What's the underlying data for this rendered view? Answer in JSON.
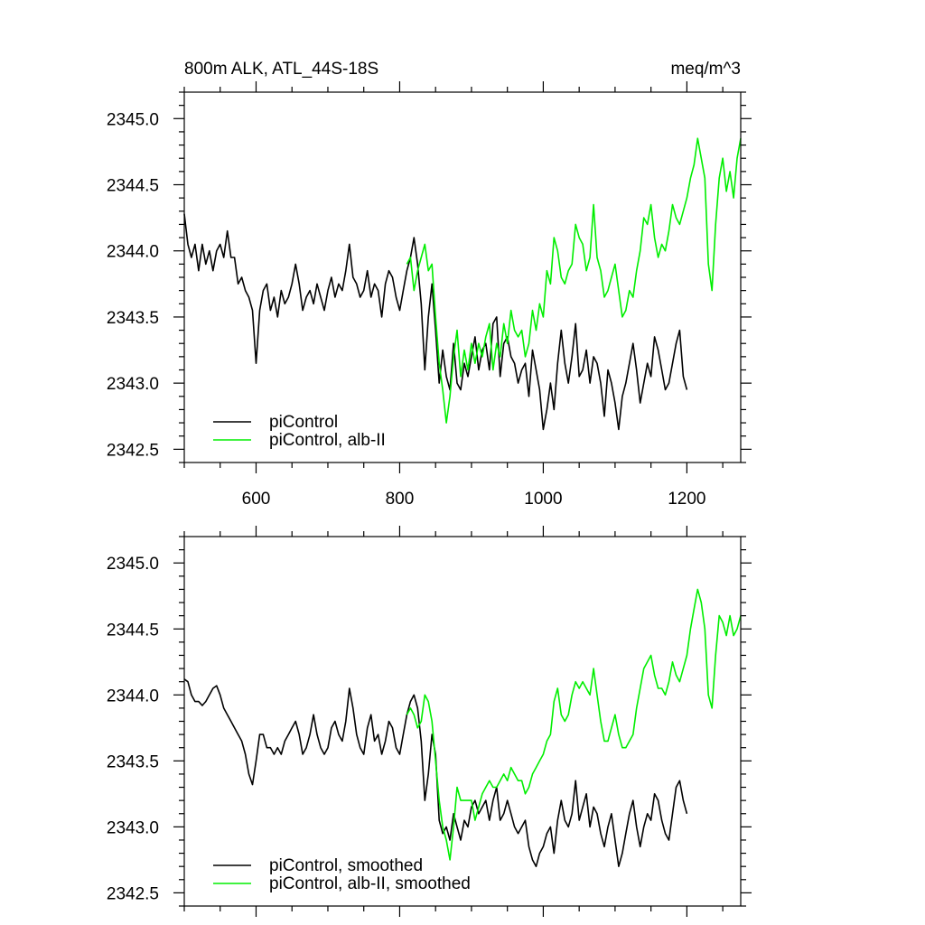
{
  "figure": {
    "title_left": "800m ALK, ATL_44S-18S",
    "title_right": "meq/m^3"
  },
  "colors": {
    "control": "#000000",
    "albII": "#00ee00"
  },
  "chart_data": [
    {
      "type": "line",
      "title": "800m ALK, ATL_44S-18S",
      "units": "meq/m^3",
      "xlim": [
        500,
        1275
      ],
      "ylim": [
        2342.4,
        2345.2
      ],
      "x_ticks": [
        600,
        800,
        1000,
        1200
      ],
      "y_ticks": [
        2342.5,
        2343.0,
        2343.5,
        2344.0,
        2344.5,
        2345.0
      ],
      "x_tick_labels": [
        "600",
        "800",
        "1000",
        "1200"
      ],
      "y_tick_labels": [
        "2342.5",
        "2343.0",
        "2343.5",
        "2344.0",
        "2344.5",
        "2345.0"
      ],
      "grid": false,
      "legend_position": "bottom-left",
      "series": [
        {
          "name": "piControl",
          "color": "#000000",
          "x": [
            500,
            505,
            510,
            515,
            520,
            525,
            530,
            535,
            540,
            545,
            550,
            555,
            560,
            565,
            570,
            575,
            580,
            585,
            590,
            595,
            600,
            605,
            610,
            615,
            620,
            625,
            630,
            635,
            640,
            645,
            650,
            655,
            660,
            665,
            670,
            675,
            680,
            685,
            690,
            695,
            700,
            705,
            710,
            715,
            720,
            725,
            730,
            735,
            740,
            745,
            750,
            755,
            760,
            765,
            770,
            775,
            780,
            785,
            790,
            795,
            800,
            805,
            810,
            815,
            820,
            825,
            830,
            835,
            840,
            845,
            850,
            855,
            860,
            865,
            870,
            875,
            880,
            885,
            890,
            895,
            900,
            905,
            910,
            915,
            920,
            925,
            930,
            935,
            940,
            945,
            950,
            955,
            960,
            965,
            970,
            975,
            980,
            985,
            990,
            995,
            1000,
            1005,
            1010,
            1015,
            1020,
            1025,
            1030,
            1035,
            1040,
            1045,
            1050,
            1055,
            1060,
            1065,
            1070,
            1075,
            1080,
            1085,
            1090,
            1095,
            1100,
            1105,
            1110,
            1115,
            1120,
            1125,
            1130,
            1135,
            1140,
            1145,
            1150,
            1155,
            1160,
            1165,
            1170,
            1175,
            1180,
            1185,
            1190,
            1195,
            1200
          ],
          "values": [
            2344.28,
            2344.05,
            2343.95,
            2344.05,
            2343.85,
            2344.05,
            2343.9,
            2344.0,
            2343.85,
            2344.0,
            2344.05,
            2343.95,
            2344.15,
            2343.95,
            2343.95,
            2343.75,
            2343.8,
            2343.7,
            2343.65,
            2343.55,
            2343.15,
            2343.55,
            2343.7,
            2343.75,
            2343.55,
            2343.65,
            2343.5,
            2343.7,
            2343.6,
            2343.65,
            2343.75,
            2343.9,
            2343.75,
            2343.55,
            2343.65,
            2343.7,
            2343.6,
            2343.75,
            2343.65,
            2343.55,
            2343.7,
            2343.8,
            2343.65,
            2343.75,
            2343.7,
            2343.85,
            2344.05,
            2343.8,
            2343.75,
            2343.65,
            2343.7,
            2343.85,
            2343.65,
            2343.75,
            2343.7,
            2343.5,
            2343.75,
            2343.85,
            2343.8,
            2343.65,
            2343.55,
            2343.7,
            2343.85,
            2343.95,
            2344.1,
            2343.9,
            2343.6,
            2343.1,
            2343.5,
            2343.75,
            2343.4,
            2343.0,
            2343.25,
            2343.05,
            2342.95,
            2343.3,
            2343.0,
            2342.95,
            2343.15,
            2343.05,
            2343.2,
            2343.35,
            2343.1,
            2343.25,
            2343.3,
            2343.1,
            2343.45,
            2343.5,
            2343.05,
            2343.3,
            2343.35,
            2343.2,
            2343.15,
            2343.0,
            2343.1,
            2343.15,
            2342.9,
            2343.25,
            2343.1,
            2342.95,
            2342.65,
            2342.8,
            2343.0,
            2342.8,
            2343.15,
            2343.4,
            2343.15,
            2343.0,
            2343.2,
            2343.45,
            2343.05,
            2343.1,
            2343.25,
            2343.0,
            2343.2,
            2343.15,
            2343.0,
            2342.75,
            2343.1,
            2343.0,
            2342.85,
            2342.65,
            2342.9,
            2343.0,
            2343.15,
            2343.3,
            2343.1,
            2342.85,
            2343.0,
            2343.15,
            2343.05,
            2343.35,
            2343.25,
            2343.1,
            2342.95,
            2343.0,
            2343.15,
            2343.3,
            2343.4,
            2343.05,
            2342.95
          ]
        },
        {
          "name": "piControl, alb-II",
          "color": "#00ee00",
          "x": [
            810,
            815,
            820,
            825,
            830,
            835,
            840,
            845,
            850,
            855,
            860,
            865,
            870,
            875,
            880,
            885,
            890,
            895,
            900,
            905,
            910,
            915,
            920,
            925,
            930,
            935,
            940,
            945,
            950,
            955,
            960,
            965,
            970,
            975,
            980,
            985,
            990,
            995,
            1000,
            1005,
            1010,
            1015,
            1020,
            1025,
            1030,
            1035,
            1040,
            1045,
            1050,
            1055,
            1060,
            1065,
            1070,
            1075,
            1080,
            1085,
            1090,
            1095,
            1100,
            1105,
            1110,
            1115,
            1120,
            1125,
            1130,
            1135,
            1140,
            1145,
            1150,
            1155,
            1160,
            1165,
            1170,
            1175,
            1180,
            1185,
            1190,
            1195,
            1200,
            1205,
            1210,
            1215,
            1220,
            1225,
            1230,
            1235,
            1240,
            1245,
            1250,
            1255,
            1260,
            1265,
            1270,
            1275
          ],
          "values": [
            2343.9,
            2343.95,
            2343.7,
            2343.85,
            2343.95,
            2344.05,
            2343.85,
            2343.9,
            2343.5,
            2343.15,
            2342.95,
            2342.7,
            2342.9,
            2343.2,
            2343.4,
            2343.05,
            2343.25,
            2343.1,
            2343.3,
            2343.15,
            2343.3,
            2343.2,
            2343.35,
            2343.45,
            2343.1,
            2343.3,
            2343.2,
            2343.45,
            2343.3,
            2343.55,
            2343.4,
            2343.35,
            2343.4,
            2343.2,
            2343.3,
            2343.55,
            2343.4,
            2343.6,
            2343.5,
            2343.85,
            2343.75,
            2344.1,
            2344.0,
            2343.8,
            2343.75,
            2343.85,
            2343.9,
            2344.2,
            2344.1,
            2344.05,
            2343.85,
            2343.95,
            2344.35,
            2343.95,
            2343.85,
            2343.65,
            2343.7,
            2343.8,
            2343.9,
            2343.7,
            2343.5,
            2343.55,
            2343.7,
            2343.65,
            2343.85,
            2344.0,
            2344.25,
            2344.2,
            2344.35,
            2344.1,
            2343.95,
            2344.05,
            2344.0,
            2344.15,
            2344.35,
            2344.25,
            2344.2,
            2344.3,
            2344.4,
            2344.55,
            2344.65,
            2344.85,
            2344.7,
            2344.55,
            2343.9,
            2343.7,
            2344.2,
            2344.55,
            2344.7,
            2344.45,
            2344.6,
            2344.4,
            2344.7,
            2344.85
          ]
        }
      ]
    },
    {
      "type": "line",
      "xlim": [
        500,
        1275
      ],
      "ylim": [
        2342.4,
        2345.2
      ],
      "x_ticks": [
        600,
        800,
        1000,
        1200
      ],
      "y_ticks": [
        2342.5,
        2343.0,
        2343.5,
        2344.0,
        2344.5,
        2345.0
      ],
      "x_tick_labels": [],
      "y_tick_labels": [
        "2342.5",
        "2343.0",
        "2343.5",
        "2344.0",
        "2344.5",
        "2345.0"
      ],
      "grid": false,
      "legend_position": "bottom-left",
      "series": [
        {
          "name": "piControl, smoothed",
          "color": "#000000",
          "x": [
            500,
            505,
            510,
            515,
            520,
            525,
            530,
            535,
            540,
            545,
            550,
            555,
            560,
            565,
            570,
            575,
            580,
            585,
            590,
            595,
            600,
            605,
            610,
            615,
            620,
            625,
            630,
            635,
            640,
            645,
            650,
            655,
            660,
            665,
            670,
            675,
            680,
            685,
            690,
            695,
            700,
            705,
            710,
            715,
            720,
            725,
            730,
            735,
            740,
            745,
            750,
            755,
            760,
            765,
            770,
            775,
            780,
            785,
            790,
            795,
            800,
            805,
            810,
            815,
            820,
            825,
            830,
            835,
            840,
            845,
            850,
            855,
            860,
            865,
            870,
            875,
            880,
            885,
            890,
            895,
            900,
            905,
            910,
            915,
            920,
            925,
            930,
            935,
            940,
            945,
            950,
            955,
            960,
            965,
            970,
            975,
            980,
            985,
            990,
            995,
            1000,
            1005,
            1010,
            1015,
            1020,
            1025,
            1030,
            1035,
            1040,
            1045,
            1050,
            1055,
            1060,
            1065,
            1070,
            1075,
            1080,
            1085,
            1090,
            1095,
            1100,
            1105,
            1110,
            1115,
            1120,
            1125,
            1130,
            1135,
            1140,
            1145,
            1150,
            1155,
            1160,
            1165,
            1170,
            1175,
            1180,
            1185,
            1190,
            1195,
            1200
          ],
          "values": [
            2344.12,
            2344.1,
            2344.0,
            2343.95,
            2343.95,
            2343.92,
            2343.95,
            2344.0,
            2344.05,
            2344.07,
            2344.0,
            2343.9,
            2343.85,
            2343.8,
            2343.75,
            2343.7,
            2343.65,
            2343.55,
            2343.4,
            2343.32,
            2343.5,
            2343.7,
            2343.7,
            2343.6,
            2343.6,
            2343.55,
            2343.6,
            2343.55,
            2343.65,
            2343.7,
            2343.75,
            2343.8,
            2343.7,
            2343.55,
            2343.6,
            2343.7,
            2343.85,
            2343.7,
            2343.6,
            2343.55,
            2343.6,
            2343.75,
            2343.8,
            2343.7,
            2343.65,
            2343.8,
            2344.05,
            2343.9,
            2343.7,
            2343.6,
            2343.55,
            2343.75,
            2343.85,
            2343.65,
            2343.7,
            2343.55,
            2343.65,
            2343.8,
            2343.75,
            2343.6,
            2343.55,
            2343.7,
            2343.85,
            2343.95,
            2344.0,
            2343.9,
            2343.65,
            2343.2,
            2343.4,
            2343.7,
            2343.55,
            2343.05,
            2342.95,
            2343.0,
            2342.9,
            2343.1,
            2343.0,
            2342.9,
            2343.05,
            2343.0,
            2343.15,
            2343.2,
            2343.1,
            2343.15,
            2343.2,
            2343.05,
            2343.2,
            2343.3,
            2343.05,
            2343.1,
            2343.2,
            2343.1,
            2343.0,
            2342.95,
            2343.0,
            2343.05,
            2342.85,
            2342.75,
            2342.7,
            2342.8,
            2342.85,
            2342.95,
            2343.0,
            2342.8,
            2343.05,
            2343.2,
            2343.05,
            2343.0,
            2343.1,
            2343.35,
            2343.05,
            2343.15,
            2343.25,
            2343.0,
            2343.15,
            2343.1,
            2342.95,
            2342.85,
            2343.0,
            2343.1,
            2342.9,
            2342.7,
            2342.8,
            2342.95,
            2343.1,
            2343.2,
            2343.0,
            2342.85,
            2343.0,
            2343.1,
            2343.05,
            2343.25,
            2343.2,
            2343.05,
            2342.95,
            2342.9,
            2343.1,
            2343.3,
            2343.35,
            2343.2,
            2343.1
          ]
        },
        {
          "name": "piControl, alb-II, smoothed",
          "color": "#00ee00",
          "x": [
            810,
            815,
            820,
            825,
            830,
            835,
            840,
            845,
            850,
            855,
            860,
            865,
            870,
            875,
            880,
            885,
            890,
            895,
            900,
            905,
            910,
            915,
            920,
            925,
            930,
            935,
            940,
            945,
            950,
            955,
            960,
            965,
            970,
            975,
            980,
            985,
            990,
            995,
            1000,
            1005,
            1010,
            1015,
            1020,
            1025,
            1030,
            1035,
            1040,
            1045,
            1050,
            1055,
            1060,
            1065,
            1070,
            1075,
            1080,
            1085,
            1090,
            1095,
            1100,
            1105,
            1110,
            1115,
            1120,
            1125,
            1130,
            1135,
            1140,
            1145,
            1150,
            1155,
            1160,
            1165,
            1170,
            1175,
            1180,
            1185,
            1190,
            1195,
            1200,
            1205,
            1210,
            1215,
            1220,
            1225,
            1230,
            1235,
            1240,
            1245,
            1250,
            1255,
            1260,
            1265,
            1270,
            1275
          ],
          "values": [
            2343.85,
            2343.9,
            2343.85,
            2343.75,
            2343.8,
            2344.0,
            2343.95,
            2343.8,
            2343.5,
            2343.2,
            2343.0,
            2342.9,
            2342.75,
            2343.0,
            2343.3,
            2343.2,
            2343.2,
            2343.2,
            2343.2,
            2343.05,
            2343.15,
            2343.25,
            2343.3,
            2343.35,
            2343.3,
            2343.3,
            2343.35,
            2343.4,
            2343.35,
            2343.45,
            2343.4,
            2343.35,
            2343.35,
            2343.25,
            2343.3,
            2343.4,
            2343.45,
            2343.5,
            2343.55,
            2343.65,
            2343.7,
            2343.95,
            2344.05,
            2343.85,
            2343.8,
            2343.85,
            2344.0,
            2344.1,
            2344.05,
            2344.1,
            2344.05,
            2344.0,
            2344.2,
            2344.0,
            2343.8,
            2343.65,
            2343.65,
            2343.75,
            2343.85,
            2343.7,
            2343.6,
            2343.6,
            2343.65,
            2343.7,
            2343.9,
            2344.05,
            2344.2,
            2344.25,
            2344.3,
            2344.15,
            2344.05,
            2344.05,
            2344.0,
            2344.1,
            2344.25,
            2344.15,
            2344.1,
            2344.2,
            2344.3,
            2344.5,
            2344.65,
            2344.8,
            2344.7,
            2344.5,
            2344.0,
            2343.9,
            2344.3,
            2344.6,
            2344.55,
            2344.45,
            2344.6,
            2344.45,
            2344.5,
            2344.6
          ]
        }
      ]
    }
  ]
}
